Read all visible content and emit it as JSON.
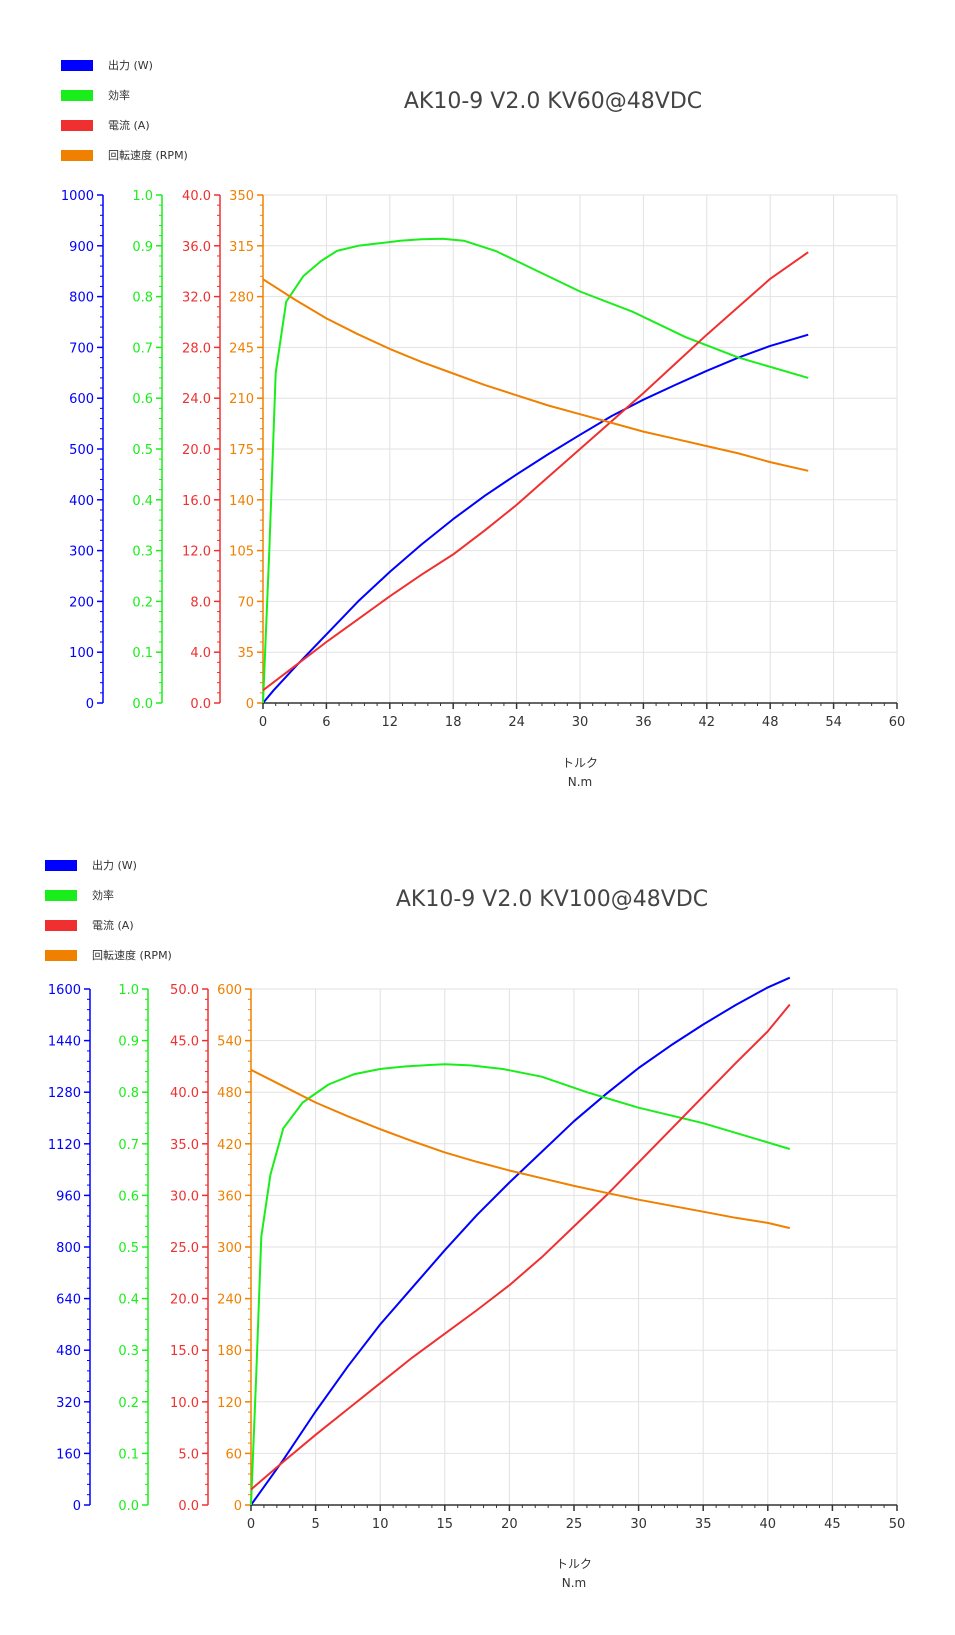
{
  "chart_data": [
    {
      "type": "line",
      "title": "AK10-9 V2.0 KV60@48VDC",
      "xlabel": "トルク",
      "xlabel_unit": "N.m",
      "xlim": [
        0,
        60
      ],
      "x_ticks": [
        "0",
        "6",
        "12",
        "18",
        "24",
        "30",
        "36",
        "42",
        "48",
        "54",
        "60"
      ],
      "grid": true,
      "legend_position": "top-left",
      "axes": [
        {
          "key": "power",
          "color": "#0000ff",
          "ylim": [
            0,
            1000
          ],
          "ticks": [
            "0",
            "100",
            "200",
            "300",
            "400",
            "500",
            "600",
            "700",
            "800",
            "900",
            "1000"
          ]
        },
        {
          "key": "efficiency",
          "color": "#1aee1a",
          "ylim": [
            0,
            1.0
          ],
          "ticks": [
            "0.0",
            "0.1",
            "0.2",
            "0.3",
            "0.4",
            "0.5",
            "0.6",
            "0.7",
            "0.8",
            "0.9",
            "1.0"
          ]
        },
        {
          "key": "current",
          "color": "#f03030",
          "ylim": [
            0,
            40
          ],
          "ticks": [
            "0.0",
            "4.0",
            "8.0",
            "12.0",
            "16.0",
            "20.0",
            "24.0",
            "28.0",
            "32.0",
            "36.0",
            "40.0"
          ]
        },
        {
          "key": "speed",
          "color": "#f08000",
          "ylim": [
            0,
            350
          ],
          "ticks": [
            "0",
            "35",
            "70",
            "105",
            "140",
            "175",
            "210",
            "245",
            "280",
            "315",
            "350"
          ]
        }
      ],
      "series": [
        {
          "name": "出力 (W)",
          "axis": "power",
          "color": "#0000ff",
          "x": [
            0,
            1,
            3,
            6,
            9,
            12,
            15,
            18,
            21,
            24,
            27,
            30,
            33,
            36,
            39,
            42,
            45,
            48,
            51.6
          ],
          "y": [
            0,
            25,
            70,
            135,
            200,
            258,
            312,
            362,
            408,
            450,
            490,
            528,
            565,
            597,
            626,
            654,
            680,
            703,
            725
          ]
        },
        {
          "name": "効率",
          "axis": "efficiency",
          "color": "#1aee1a",
          "x": [
            0,
            0.6,
            1.2,
            2.2,
            3.8,
            5.5,
            7,
            9,
            11,
            13,
            15,
            17,
            19,
            22,
            25,
            30,
            35,
            40,
            45,
            51.6
          ],
          "y": [
            0,
            0.3,
            0.65,
            0.79,
            0.84,
            0.87,
            0.89,
            0.9,
            0.905,
            0.91,
            0.913,
            0.914,
            0.91,
            0.89,
            0.86,
            0.81,
            0.77,
            0.72,
            0.68,
            0.64
          ]
        },
        {
          "name": "電流 (A)",
          "axis": "current",
          "color": "#f03030",
          "x": [
            0,
            3,
            6,
            9,
            12,
            15,
            18,
            21,
            24,
            27,
            30,
            33,
            36,
            39,
            42,
            45,
            48,
            51.6
          ],
          "y": [
            1.0,
            2.9,
            4.8,
            6.6,
            8.4,
            10.1,
            11.7,
            13.6,
            15.6,
            17.8,
            20.0,
            22.2,
            24.4,
            26.7,
            29.0,
            31.2,
            33.4,
            35.5
          ]
        },
        {
          "name": "回転速度 (RPM)",
          "axis": "speed",
          "color": "#f08000",
          "x": [
            0,
            3,
            6,
            9,
            12,
            15,
            18,
            21,
            24,
            27,
            30,
            33,
            36,
            39,
            42,
            45,
            48,
            51.6
          ],
          "y": [
            292,
            278,
            265,
            254,
            244,
            235,
            227,
            219,
            212,
            205,
            199,
            193,
            187,
            182,
            177,
            172,
            166,
            160
          ]
        }
      ]
    },
    {
      "type": "line",
      "title": "AK10-9 V2.0 KV100@48VDC",
      "xlabel": "トルク",
      "xlabel_unit": "N.m",
      "xlim": [
        0,
        50
      ],
      "x_ticks": [
        "0",
        "5",
        "10",
        "15",
        "20",
        "25",
        "30",
        "35",
        "40",
        "45",
        "50"
      ],
      "grid": true,
      "legend_position": "top-left",
      "axes": [
        {
          "key": "power",
          "color": "#0000ff",
          "ylim": [
            0,
            1600
          ],
          "ticks": [
            "0",
            "160",
            "320",
            "480",
            "640",
            "800",
            "960",
            "1120",
            "1280",
            "1440",
            "1600"
          ]
        },
        {
          "key": "efficiency",
          "color": "#1aee1a",
          "ylim": [
            0,
            1.0
          ],
          "ticks": [
            "0.0",
            "0.1",
            "0.2",
            "0.3",
            "0.4",
            "0.5",
            "0.6",
            "0.7",
            "0.8",
            "0.9",
            "1.0"
          ]
        },
        {
          "key": "current",
          "color": "#f03030",
          "ylim": [
            0,
            50
          ],
          "ticks": [
            "0.0",
            "5.0",
            "10.0",
            "15.0",
            "20.0",
            "25.0",
            "30.0",
            "35.0",
            "40.0",
            "45.0",
            "50.0"
          ]
        },
        {
          "key": "speed",
          "color": "#f08000",
          "ylim": [
            0,
            600
          ],
          "ticks": [
            "0",
            "60",
            "120",
            "180",
            "240",
            "300",
            "360",
            "420",
            "480",
            "540",
            "600"
          ]
        }
      ],
      "series": [
        {
          "name": "出力 (W)",
          "axis": "power",
          "color": "#0000ff",
          "x": [
            0,
            2.5,
            5,
            7.5,
            10,
            12.5,
            15,
            17.5,
            20,
            22.5,
            25,
            27.5,
            30,
            32.5,
            35,
            37.5,
            40,
            41.7
          ],
          "y": [
            0,
            140,
            290,
            430,
            560,
            675,
            790,
            900,
            1000,
            1095,
            1190,
            1275,
            1355,
            1425,
            1490,
            1550,
            1605,
            1635
          ]
        },
        {
          "name": "効率",
          "axis": "efficiency",
          "color": "#1aee1a",
          "x": [
            0,
            0.4,
            0.8,
            1.5,
            2.5,
            4,
            6,
            8,
            10,
            12,
            14,
            15,
            17,
            19.5,
            22.5,
            26,
            30,
            35,
            41.7
          ],
          "y": [
            0,
            0.25,
            0.52,
            0.64,
            0.73,
            0.78,
            0.815,
            0.835,
            0.845,
            0.85,
            0.853,
            0.854,
            0.852,
            0.845,
            0.83,
            0.8,
            0.77,
            0.74,
            0.69
          ]
        },
        {
          "name": "電流 (A)",
          "axis": "current",
          "color": "#f03030",
          "x": [
            0,
            2.5,
            5,
            7.5,
            10,
            12.5,
            15,
            17.5,
            20,
            22.5,
            25,
            27.5,
            30,
            32.5,
            35,
            37.5,
            40,
            41.7
          ],
          "y": [
            1.5,
            4.2,
            6.8,
            9.3,
            11.8,
            14.3,
            16.6,
            18.9,
            21.3,
            24.0,
            27.0,
            30.0,
            33.2,
            36.4,
            39.6,
            42.8,
            45.9,
            48.5
          ]
        },
        {
          "name": "回転速度 (RPM)",
          "axis": "speed",
          "color": "#f08000",
          "x": [
            0,
            2.5,
            5,
            7.5,
            10,
            12.5,
            15,
            17.5,
            20,
            22.5,
            25,
            27.5,
            30,
            32.5,
            35,
            37.5,
            40,
            41.7
          ],
          "y": [
            506,
            487,
            468,
            452,
            437,
            423,
            410,
            399,
            389,
            380,
            371,
            363,
            355,
            348,
            341,
            334,
            328,
            322
          ]
        }
      ]
    }
  ]
}
